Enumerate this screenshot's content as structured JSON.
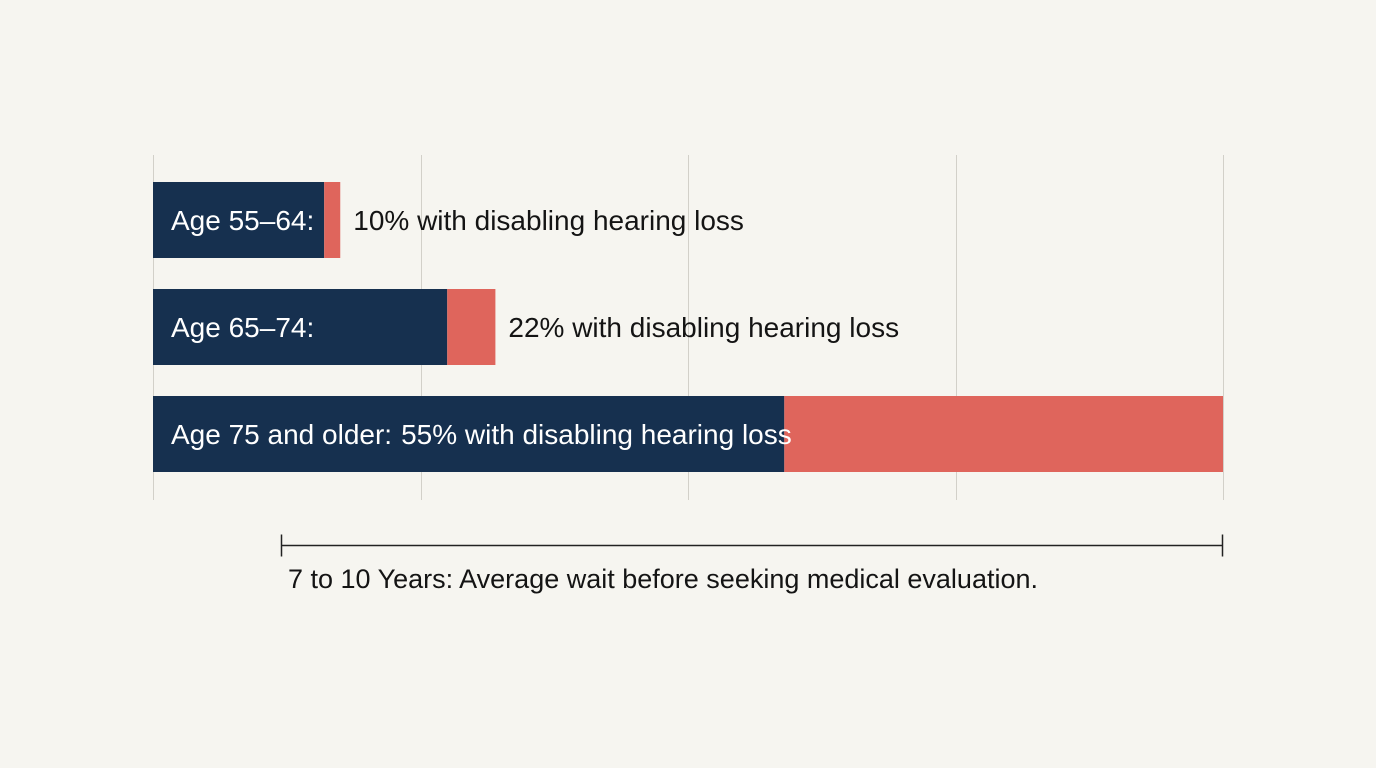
{
  "chart_data": {
    "type": "bar",
    "orientation": "horizontal",
    "stacked": true,
    "grid": true,
    "categories": [
      "Age 55–64:",
      "Age 65–74:",
      "Age 75 and older:"
    ],
    "value_labels": [
      "10% with disabling hearing loss",
      "22% with disabling hearing loss",
      "55% with disabling hearing loss"
    ],
    "values": [
      10,
      22,
      55
    ],
    "highlight_values": [
      1.5,
      4.5,
      41
    ],
    "total_values": [
      17.5,
      32,
      100
    ],
    "xlim": [
      0,
      100
    ],
    "annotation": {
      "text": "7 to 10 Years: Average wait before seeking medical evaluation.",
      "span": [
        12,
        100
      ]
    },
    "colors": {
      "primary": "#16304f",
      "highlight": "#df655c",
      "grid": "#d2d0c9",
      "text": "#141414",
      "bar_text": "#ffffff",
      "background": "#f6f5f0"
    }
  }
}
